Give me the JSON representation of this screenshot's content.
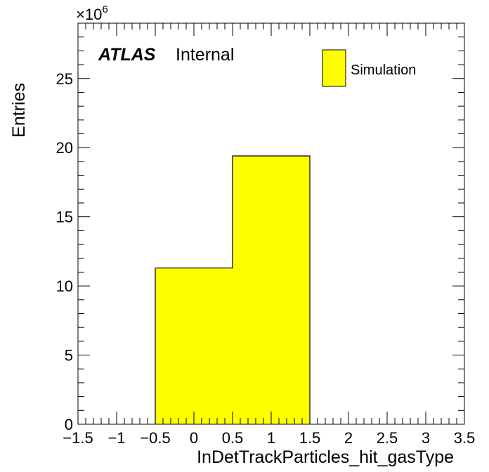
{
  "chart_data": {
    "type": "bar",
    "histogram": true,
    "bin_edges": [
      -0.5,
      0.5,
      1.5
    ],
    "values": [
      11300000,
      19400000
    ],
    "series": [
      {
        "name": "Simulation",
        "values": [
          11300000,
          19400000
        ],
        "color": "#ffff00"
      }
    ],
    "xlabel": "InDetTrackParticles_hit_gasType",
    "ylabel": "Entries",
    "y_multiplier_label": "×10",
    "y_multiplier_exponent": "6",
    "xlim": [
      -1.5,
      3.5
    ],
    "ylim": [
      0,
      29000000
    ],
    "x_ticks": [
      -1.5,
      -1,
      -0.5,
      0,
      0.5,
      1,
      1.5,
      2,
      2.5,
      3,
      3.5
    ],
    "x_tick_labels": [
      "−1.5",
      "−1",
      "−0.5",
      "0",
      "0.5",
      "1",
      "1.5",
      "2",
      "2.5",
      "3",
      "3.5"
    ],
    "y_ticks": [
      0,
      5,
      10,
      15,
      20,
      25
    ],
    "y_tick_labels": [
      "0",
      "5",
      "10",
      "15",
      "20",
      "25"
    ],
    "grid": false,
    "legend_position": "top-right"
  },
  "annotation": {
    "atlas": "ATLAS",
    "status": "Internal"
  },
  "legend": {
    "label": "Simulation",
    "color": "#ffff00"
  }
}
